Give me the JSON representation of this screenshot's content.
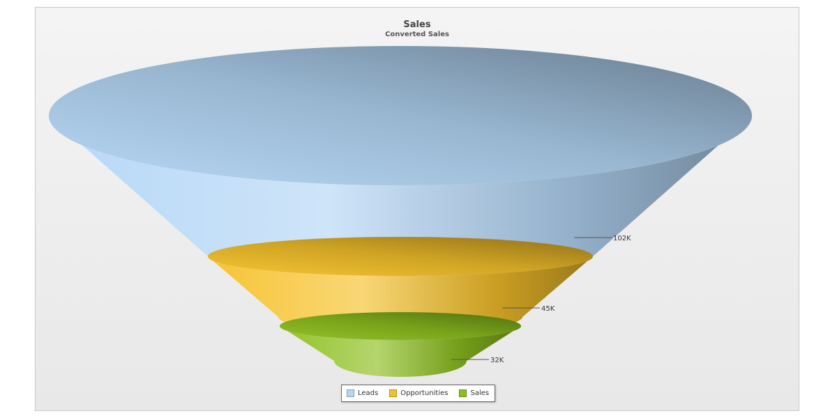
{
  "chart_data": {
    "type": "funnel",
    "title": "Sales",
    "subtitle": "Converted Sales",
    "categories": [
      "Leads",
      "Opportunities",
      "Sales"
    ],
    "values": [
      102000,
      45000,
      32000
    ],
    "value_labels": [
      "102K",
      "45K",
      "32K"
    ],
    "colors": [
      "#b3d6f5",
      "#f5c12a",
      "#8dbf1e"
    ],
    "legend_position": "bottom"
  }
}
